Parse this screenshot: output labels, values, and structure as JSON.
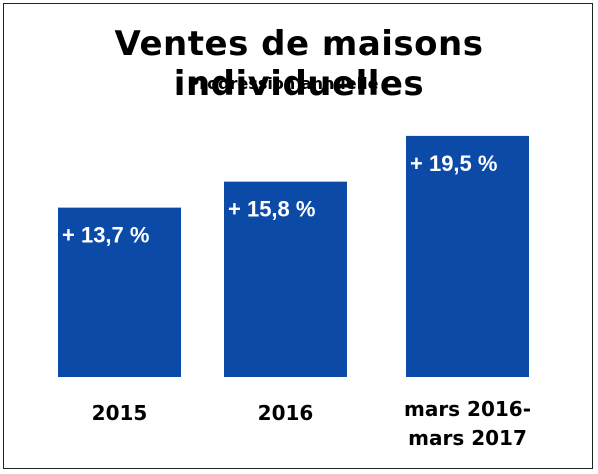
{
  "chart_data": {
    "type": "bar",
    "title": "Ventes de maisons individuelles",
    "subtitle": "Progression annuelle",
    "categories": [
      [
        "2015"
      ],
      [
        "2016"
      ],
      [
        "mars 2016-",
        "mars 2017"
      ]
    ],
    "values": [
      13.7,
      15.8,
      19.5
    ],
    "value_labels": [
      "+ 13,7 %",
      "+ 15,8 %",
      "+ 19,5 %"
    ],
    "ylim": [
      0,
      22
    ],
    "grid": false,
    "legend": "none",
    "bar_color": "#0b4aa6"
  }
}
